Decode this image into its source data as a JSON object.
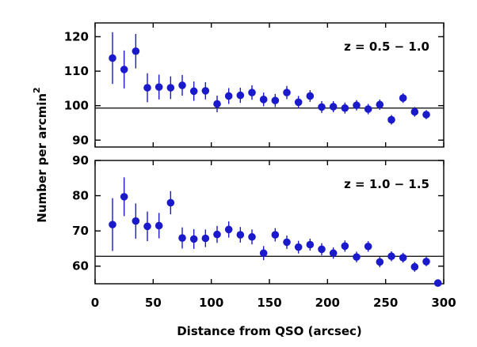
{
  "chart_data": {
    "type": "scatter",
    "xlabel": "Distance from QSO (arcsec)",
    "ylabel_main": "Number per arcmin",
    "ylabel_sup": "2",
    "xlim": [
      0,
      300
    ],
    "xticks": [
      0,
      50,
      100,
      150,
      200,
      250,
      300
    ],
    "panels": [
      {
        "label": "z = 0.5 − 1.0",
        "ylim": [
          88,
          124
        ],
        "yticks": [
          90,
          100,
          110,
          120
        ],
        "reference_y": 99.3,
        "points": [
          {
            "x": 15,
            "y": 113.8,
            "err": 7.5
          },
          {
            "x": 25,
            "y": 110.5,
            "err": 5.5
          },
          {
            "x": 35,
            "y": 115.8,
            "err": 5.0
          },
          {
            "x": 45,
            "y": 105.2,
            "err": 4.2
          },
          {
            "x": 55,
            "y": 105.4,
            "err": 3.6
          },
          {
            "x": 65,
            "y": 105.2,
            "err": 3.3
          },
          {
            "x": 75,
            "y": 105.9,
            "err": 3.0
          },
          {
            "x": 85,
            "y": 104.2,
            "err": 2.8
          },
          {
            "x": 95,
            "y": 104.3,
            "err": 2.5
          },
          {
            "x": 105,
            "y": 100.5,
            "err": 2.4
          },
          {
            "x": 115,
            "y": 102.8,
            "err": 2.3
          },
          {
            "x": 125,
            "y": 103.0,
            "err": 2.2
          },
          {
            "x": 135,
            "y": 103.8,
            "err": 2.1
          },
          {
            "x": 145,
            "y": 101.8,
            "err": 2.0
          },
          {
            "x": 155,
            "y": 101.5,
            "err": 1.9
          },
          {
            "x": 165,
            "y": 103.8,
            "err": 1.9
          },
          {
            "x": 175,
            "y": 101.0,
            "err": 1.8
          },
          {
            "x": 185,
            "y": 102.8,
            "err": 1.7
          },
          {
            "x": 195,
            "y": 99.6,
            "err": 1.7
          },
          {
            "x": 205,
            "y": 99.7,
            "err": 1.6
          },
          {
            "x": 215,
            "y": 99.3,
            "err": 1.6
          },
          {
            "x": 225,
            "y": 100.1,
            "err": 1.5
          },
          {
            "x": 235,
            "y": 99.0,
            "err": 1.5
          },
          {
            "x": 245,
            "y": 100.3,
            "err": 1.5
          },
          {
            "x": 255,
            "y": 95.9,
            "err": 1.4
          },
          {
            "x": 265,
            "y": 102.2,
            "err": 1.4
          },
          {
            "x": 275,
            "y": 98.2,
            "err": 1.4
          },
          {
            "x": 285,
            "y": 97.4,
            "err": 1.3
          }
        ]
      },
      {
        "label": "z = 1.0 − 1.5",
        "ylim": [
          55,
          90
        ],
        "yticks": [
          60,
          70,
          80,
          90
        ],
        "reference_y": 62.8,
        "points": [
          {
            "x": 15,
            "y": 71.8,
            "err": 7.5
          },
          {
            "x": 25,
            "y": 79.7,
            "err": 5.5
          },
          {
            "x": 35,
            "y": 72.8,
            "err": 5.0
          },
          {
            "x": 45,
            "y": 71.3,
            "err": 4.2
          },
          {
            "x": 55,
            "y": 71.5,
            "err": 3.6
          },
          {
            "x": 65,
            "y": 78.0,
            "err": 3.3
          },
          {
            "x": 75,
            "y": 68.0,
            "err": 3.0
          },
          {
            "x": 85,
            "y": 67.7,
            "err": 2.8
          },
          {
            "x": 95,
            "y": 67.9,
            "err": 2.5
          },
          {
            "x": 105,
            "y": 69.0,
            "err": 2.4
          },
          {
            "x": 115,
            "y": 70.4,
            "err": 2.3
          },
          {
            "x": 125,
            "y": 68.9,
            "err": 2.2
          },
          {
            "x": 135,
            "y": 68.3,
            "err": 2.1
          },
          {
            "x": 145,
            "y": 63.7,
            "err": 2.0
          },
          {
            "x": 155,
            "y": 68.9,
            "err": 1.9
          },
          {
            "x": 165,
            "y": 66.8,
            "err": 1.9
          },
          {
            "x": 175,
            "y": 65.4,
            "err": 1.8
          },
          {
            "x": 185,
            "y": 66.1,
            "err": 1.7
          },
          {
            "x": 195,
            "y": 64.8,
            "err": 1.7
          },
          {
            "x": 205,
            "y": 63.7,
            "err": 1.6
          },
          {
            "x": 215,
            "y": 65.7,
            "err": 1.6
          },
          {
            "x": 225,
            "y": 62.6,
            "err": 1.5
          },
          {
            "x": 235,
            "y": 65.6,
            "err": 1.5
          },
          {
            "x": 245,
            "y": 61.2,
            "err": 1.5
          },
          {
            "x": 255,
            "y": 62.8,
            "err": 1.4
          },
          {
            "x": 265,
            "y": 62.4,
            "err": 1.4
          },
          {
            "x": 275,
            "y": 59.8,
            "err": 1.4
          },
          {
            "x": 285,
            "y": 61.3,
            "err": 1.3
          },
          {
            "x": 295,
            "y": 55.2,
            "err": 0
          }
        ]
      }
    ]
  }
}
